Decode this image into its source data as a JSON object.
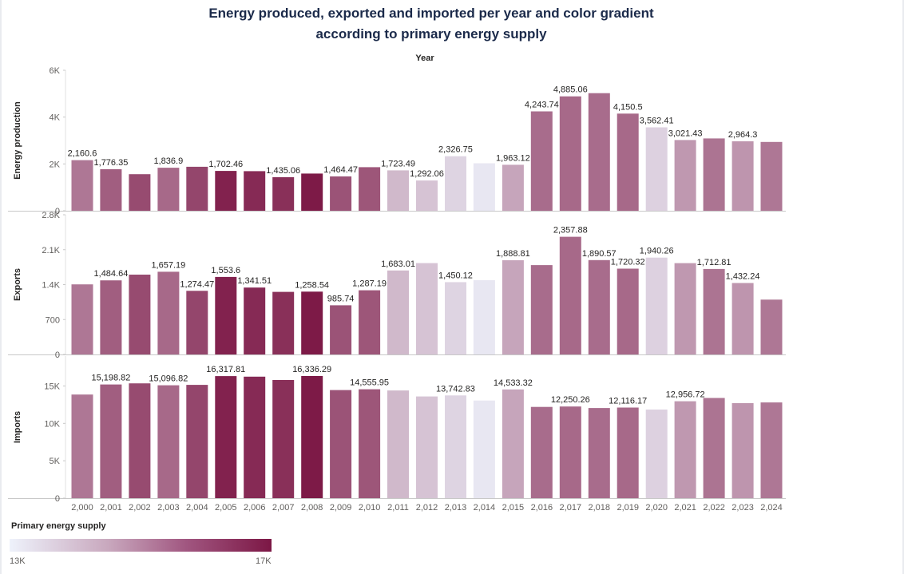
{
  "title": "Energy produced, exported and imported per year and color gradient according to primary energy supply",
  "chart_data": {
    "type": "bar",
    "x_axis_title": "Year",
    "categories": [
      "2,000",
      "2,001",
      "2,002",
      "2,003",
      "2,004",
      "2,005",
      "2,006",
      "2,007",
      "2,008",
      "2,009",
      "2,010",
      "2,011",
      "2,012",
      "2,013",
      "2,014",
      "2,015",
      "2,016",
      "2,017",
      "2,018",
      "2,019",
      "2,020",
      "2,021",
      "2,022",
      "2,023",
      "2,024"
    ],
    "color_metric": {
      "title": "Primary energy supply",
      "min_label": "13K",
      "max_label": "17K",
      "min": 13000,
      "max": 17000,
      "color_low": "#eef2fb",
      "color_high": "#7c1745"
    },
    "color_values": [
      15250,
      15700,
      16050,
      15500,
      16150,
      16800,
      16650,
      16550,
      16950,
      15900,
      15850,
      14050,
      13850,
      13550,
      13200,
      14400,
      15450,
      15500,
      15450,
      15500,
      13600,
      14650,
      15300,
      14700,
      15250
    ],
    "panels": [
      {
        "ylabel": "Energy production",
        "ylim": [
          0,
          6000
        ],
        "ticks": [
          0,
          2000,
          4000,
          6000
        ],
        "tick_labels": [
          "0",
          "2K",
          "4K",
          "6K"
        ],
        "values": [
          2160.6,
          1776.35,
          1560,
          1836.9,
          1880,
          1702.46,
          1690,
          1435.06,
          1590,
          1464.47,
          1860,
          1723.49,
          1292.06,
          2326.75,
          2030,
          1963.12,
          4243.74,
          4885.06,
          5020,
          4150.5,
          3562.41,
          3021.43,
          3090,
          2964.3,
          2940
        ],
        "labels": [
          "2,160.6",
          "1,776.35",
          "",
          "1,836.9",
          "",
          "1,702.46",
          "",
          "1,435.06",
          "",
          "1,464.47",
          "",
          "1,723.49",
          "1,292.06",
          "2,326.75",
          "",
          "1,963.12",
          "4,243.74",
          "4,885.06",
          "",
          "4,150.5",
          "3,562.41",
          "3,021.43",
          "",
          "2,964.3",
          ""
        ]
      },
      {
        "ylabel": "Exports",
        "ylim": [
          0,
          2800
        ],
        "ticks": [
          0,
          700,
          1400,
          2100,
          2800
        ],
        "tick_labels": [
          "0",
          "700",
          "1.4K",
          "2.1K",
          "2.8K"
        ],
        "values": [
          1405,
          1484.64,
          1600,
          1657.19,
          1274.47,
          1553.6,
          1341.51,
          1255,
          1258.54,
          985.74,
          1287.19,
          1683.01,
          1830,
          1450.12,
          1490,
          1888.81,
          1790,
          2357.88,
          1890.57,
          1720.32,
          1940.26,
          1830,
          1712.81,
          1432.24,
          1100
        ],
        "labels": [
          "",
          "1,484.64",
          "",
          "1,657.19",
          "1,274.47",
          "1,553.6",
          "1,341.51",
          "",
          "1,258.54",
          "985.74",
          "1,287.19",
          "1,683.01",
          "",
          "1,450.12",
          "",
          "1,888.81",
          "",
          "2,357.88",
          "1,890.57",
          "1,720.32",
          "1,940.26",
          "",
          "1,712.81",
          "1,432.24",
          ""
        ]
      },
      {
        "ylabel": "Imports",
        "ylim": [
          0,
          19000
        ],
        "ticks": [
          0,
          5000,
          10000,
          15000
        ],
        "tick_labels": [
          "0",
          "5K",
          "10K",
          "15K"
        ],
        "values": [
          13850,
          15198.82,
          15350,
          15096.82,
          15150,
          16317.81,
          16250,
          15800,
          16336.29,
          14450,
          14555.95,
          14400,
          13600,
          13742.83,
          13050,
          14533.32,
          12200,
          12250.26,
          12050,
          12116.17,
          11850,
          12956.72,
          13400,
          12700,
          12800
        ],
        "labels": [
          "",
          "15,198.82",
          "",
          "15,096.82",
          "",
          "16,317.81",
          "",
          "",
          "16,336.29",
          "",
          "14,555.95",
          "",
          "",
          "13,742.83",
          "",
          "14,533.32",
          "",
          "12,250.26",
          "",
          "12,116.17",
          "",
          "12,956.72",
          "",
          "",
          ""
        ]
      }
    ]
  }
}
